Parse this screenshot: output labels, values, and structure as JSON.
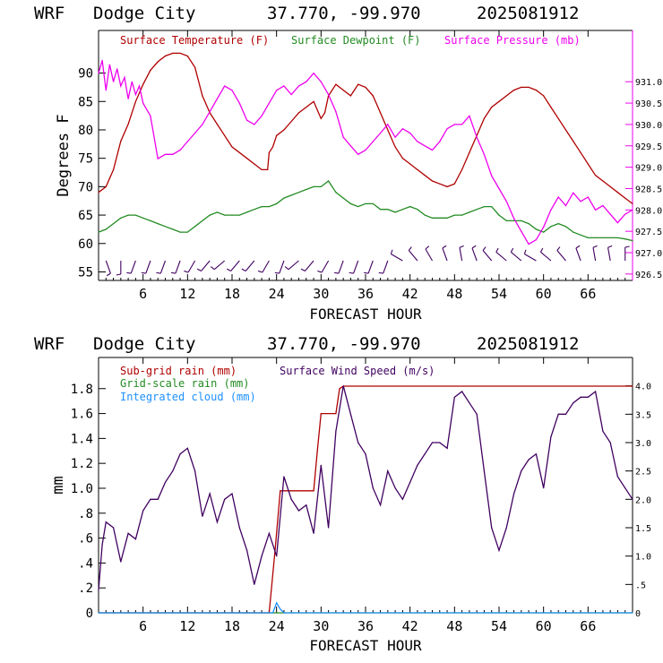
{
  "chart_data": [
    {
      "type": "line",
      "header": {
        "model": "WRF",
        "station": "Dodge City",
        "coords": "37.770, -99.970",
        "run": "2025081912"
      },
      "xlabel": "FORECAST HOUR",
      "ylabel": "Degrees F",
      "xlim": [
        0,
        72
      ],
      "ylim": [
        53.5,
        97.5
      ],
      "y2lim": [
        926.35,
        932.2
      ],
      "grid": false,
      "legend": "top",
      "xticks": [
        6,
        12,
        18,
        24,
        30,
        36,
        42,
        48,
        54,
        60,
        66
      ],
      "xtick_labels": [
        "6",
        "12",
        "18",
        "24",
        "30",
        "36",
        "42",
        "48",
        "54",
        "60",
        "66"
      ],
      "yticks": [
        55,
        60,
        65,
        70,
        75,
        80,
        85,
        90
      ],
      "ytick_labels": [
        "55",
        "60",
        "65",
        "70",
        "75",
        "80",
        "85",
        "90"
      ],
      "y2ticks": [
        926.5,
        927.0,
        927.5,
        928.0,
        928.5,
        929.0,
        929.5,
        930.0,
        930.5,
        931.0
      ],
      "y2tick_labels": [
        "926.5",
        "927.0",
        "927.5",
        "928.0",
        "928.5",
        "929.0",
        "929.5",
        "930.0",
        "930.5",
        "931.0"
      ],
      "series": [
        {
          "name": "Surface Temperature (F)",
          "axis": "left",
          "color": "#b00000",
          "x": [
            0,
            1,
            2,
            3,
            4,
            5,
            6,
            7,
            8,
            9,
            10,
            11,
            12,
            13,
            14,
            15,
            16,
            17,
            18,
            19,
            20,
            21,
            22,
            22.8,
            23,
            23.5,
            24,
            25,
            26,
            27,
            28,
            29,
            30,
            30.5,
            31,
            32,
            33,
            34,
            35,
            36,
            37,
            38,
            39,
            40,
            41,
            42,
            43,
            44,
            45,
            46,
            47,
            48,
            49,
            50,
            51,
            52,
            53,
            54,
            55,
            56,
            57,
            58,
            59,
            60,
            61,
            62,
            63,
            64,
            65,
            66,
            67,
            68,
            69,
            70,
            71,
            72
          ],
          "values": [
            69,
            70,
            73,
            78,
            81,
            85,
            88,
            90.5,
            92,
            93,
            93.5,
            93.5,
            93,
            91,
            86,
            83,
            81,
            79,
            77,
            76,
            75,
            74,
            73,
            73,
            76,
            77,
            79,
            80,
            81.5,
            83,
            84,
            85,
            82,
            83,
            86,
            88,
            87,
            86,
            88,
            87.5,
            86,
            83,
            80,
            77,
            75,
            74,
            73,
            72,
            71,
            70.5,
            70,
            70.5,
            73,
            76,
            79,
            82,
            84,
            85,
            86,
            87,
            87.5,
            87.5,
            87,
            86,
            84,
            82,
            80,
            78,
            76,
            74,
            72,
            71,
            70,
            69,
            68,
            67
          ]
        },
        {
          "name": "Surface Dewpoint (F)",
          "axis": "left",
          "color": "#228b22",
          "x": [
            0,
            1,
            2,
            3,
            4,
            5,
            6,
            7,
            8,
            9,
            10,
            11,
            12,
            13,
            14,
            15,
            16,
            17,
            18,
            19,
            20,
            21,
            22,
            23,
            24,
            25,
            26,
            27,
            28,
            29,
            30,
            31,
            32,
            33,
            34,
            35,
            36,
            37,
            38,
            39,
            40,
            41,
            42,
            43,
            44,
            45,
            46,
            47,
            48,
            49,
            50,
            51,
            52,
            53,
            54,
            55,
            56,
            57,
            58,
            59,
            60,
            61,
            62,
            63,
            64,
            65,
            66,
            67,
            68,
            69,
            70,
            71,
            72
          ],
          "values": [
            62,
            62.5,
            63.5,
            64.5,
            65,
            65,
            64.5,
            64,
            63.5,
            63,
            62.5,
            62,
            62,
            63,
            64,
            65,
            65.5,
            65,
            65,
            65,
            65.5,
            66,
            66.5,
            66.5,
            67,
            68,
            68.5,
            69,
            69.5,
            70,
            70,
            71,
            69,
            68,
            67,
            66.5,
            67,
            67,
            66,
            66,
            65.5,
            66,
            66.5,
            66,
            65,
            64.5,
            64.5,
            64.5,
            65,
            65,
            65.5,
            66,
            66.5,
            66.5,
            65,
            64,
            64,
            64,
            63.5,
            62.5,
            62,
            63,
            63.5,
            63,
            62,
            61.5,
            61,
            61,
            61,
            61,
            61,
            60.8,
            60.5
          ]
        },
        {
          "name": "Surface Pressure (mb)",
          "axis": "right",
          "color": "#ee00ee",
          "x": [
            0,
            0.5,
            1,
            1.5,
            2,
            2.5,
            3,
            3.5,
            4,
            4.5,
            5,
            5.5,
            6,
            7,
            8,
            9,
            10,
            11,
            12,
            13,
            14,
            15,
            16,
            17,
            18,
            19,
            20,
            21,
            22,
            23,
            24,
            25,
            26,
            27,
            28,
            29,
            30,
            31,
            32,
            33,
            34,
            35,
            36,
            37,
            38,
            39,
            40,
            41,
            42,
            43,
            44,
            45,
            46,
            47,
            48,
            49,
            50,
            51,
            52,
            53,
            54,
            55,
            56,
            57,
            58,
            59,
            60,
            61,
            62,
            63,
            64,
            65,
            66,
            67,
            68,
            69,
            70,
            71,
            72
          ],
          "values": [
            931.2,
            931.5,
            930.8,
            931.4,
            931.0,
            931.3,
            930.9,
            931.1,
            930.6,
            931.0,
            930.7,
            930.9,
            930.5,
            930.2,
            929.2,
            929.3,
            929.3,
            929.4,
            929.6,
            929.8,
            930.0,
            930.3,
            930.6,
            930.9,
            930.8,
            930.5,
            930.1,
            930.0,
            930.2,
            930.5,
            930.8,
            930.9,
            930.7,
            930.9,
            931.0,
            931.2,
            931.0,
            930.7,
            930.3,
            929.7,
            929.5,
            929.3,
            929.4,
            929.6,
            929.8,
            930.0,
            929.7,
            929.9,
            929.8,
            929.6,
            929.5,
            929.4,
            929.6,
            929.9,
            930.0,
            930.0,
            930.2,
            929.7,
            929.3,
            928.8,
            928.5,
            928.2,
            927.8,
            927.5,
            927.2,
            927.3,
            927.6,
            928.0,
            928.3,
            928.1,
            928.4,
            928.2,
            928.3,
            928.0,
            928.1,
            927.9,
            927.7,
            927.9,
            928.0
          ]
        }
      ],
      "wind_barbs": {
        "color": "#400060",
        "hours": [
          1,
          3,
          5,
          7,
          9,
          11,
          13,
          15,
          17,
          19,
          21,
          23,
          25,
          27,
          29,
          31,
          33,
          35,
          37,
          39,
          41,
          43,
          45,
          47,
          49,
          51,
          53,
          55,
          57,
          59,
          61,
          63,
          65,
          67,
          69,
          71
        ],
        "direction_deg": [
          160,
          180,
          200,
          200,
          200,
          200,
          210,
          220,
          230,
          220,
          220,
          210,
          200,
          230,
          220,
          210,
          200,
          200,
          200,
          200,
          300,
          320,
          330,
          340,
          350,
          340,
          320,
          310,
          310,
          300,
          310,
          320,
          340,
          350,
          350,
          360
        ]
      }
    },
    {
      "type": "line",
      "header": {
        "model": "WRF",
        "station": "Dodge City",
        "coords": "37.770, -99.970",
        "run": "2025081912"
      },
      "xlabel": "FORECAST HOUR",
      "ylabel": "mm",
      "xlim": [
        0,
        72
      ],
      "ylim": [
        0,
        2.05
      ],
      "y2lim": [
        0,
        4.5
      ],
      "grid": false,
      "legend": "top-left",
      "xticks": [
        6,
        12,
        18,
        24,
        30,
        36,
        42,
        48,
        54,
        60,
        66
      ],
      "xtick_labels": [
        "6",
        "12",
        "18",
        "24",
        "30",
        "36",
        "42",
        "48",
        "54",
        "60",
        "66"
      ],
      "yticks": [
        0,
        0.2,
        0.4,
        0.6,
        0.8,
        1.0,
        1.2,
        1.4,
        1.6,
        1.8
      ],
      "ytick_labels": [
        "0",
        ".2",
        ".4",
        ".6",
        ".8",
        "1.0",
        "1.2",
        "1.4",
        "1.6",
        "1.8"
      ],
      "y2ticks": [
        0,
        0.5,
        1.0,
        1.5,
        2.0,
        2.5,
        3.0,
        3.5,
        4.0
      ],
      "y2tick_labels": [
        "0",
        ".5",
        "1.0",
        "1.5",
        "2.0",
        "2.5",
        "3.0",
        "3.5",
        "4.0"
      ],
      "series": [
        {
          "name": "Sub-grid rain (mm)",
          "axis": "left",
          "color": "#b00000",
          "x": [
            0,
            23,
            23.8,
            24.5,
            29,
            29.5,
            30,
            30.5,
            32,
            32.5,
            33,
            72
          ],
          "values": [
            0,
            0,
            0.5,
            0.98,
            0.98,
            1.3,
            1.6,
            1.6,
            1.6,
            1.8,
            1.82,
            1.82
          ]
        },
        {
          "name": "Grid-scale rain (mm)",
          "axis": "left",
          "color": "#228b22",
          "x": [
            0,
            72
          ],
          "values": [
            0,
            0
          ]
        },
        {
          "name": "Integrated cloud (mm)",
          "axis": "left",
          "color": "#1e90ff",
          "x": [
            0,
            23.5,
            24,
            24.5,
            25,
            72
          ],
          "values": [
            0,
            0,
            0.08,
            0.03,
            0,
            0
          ]
        },
        {
          "name": "Surface Wind Speed (m/s)",
          "axis": "right",
          "color": "#400060",
          "x": [
            0,
            0.5,
            1,
            2,
            3,
            4,
            5,
            6,
            7,
            8,
            9,
            10,
            11,
            12,
            13,
            14,
            15,
            16,
            17,
            18,
            19,
            20,
            21,
            22,
            23,
            24,
            25,
            26,
            27,
            28,
            29,
            30,
            31,
            32,
            33,
            34,
            35,
            36,
            37,
            38,
            39,
            40,
            41,
            42,
            43,
            44,
            45,
            46,
            47,
            48,
            49,
            50,
            51,
            52,
            53,
            54,
            55,
            56,
            57,
            58,
            59,
            60,
            61,
            62,
            63,
            64,
            65,
            66,
            67,
            68,
            69,
            70,
            71,
            72
          ],
          "values": [
            0.4,
            1.2,
            1.6,
            1.5,
            0.9,
            1.4,
            1.3,
            1.8,
            2.0,
            2.0,
            2.3,
            2.5,
            2.8,
            2.9,
            2.5,
            1.7,
            2.1,
            1.6,
            2.0,
            2.1,
            1.5,
            1.1,
            0.5,
            1.0,
            1.4,
            1.0,
            2.4,
            2.0,
            1.8,
            1.9,
            1.4,
            2.6,
            1.5,
            3.2,
            4.0,
            3.5,
            3.0,
            2.8,
            2.2,
            1.9,
            2.5,
            2.2,
            2.0,
            2.3,
            2.6,
            2.8,
            3.0,
            3.0,
            2.9,
            3.8,
            3.9,
            3.7,
            3.5,
            2.5,
            1.5,
            1.1,
            1.5,
            2.1,
            2.5,
            2.7,
            2.8,
            2.2,
            3.1,
            3.5,
            3.5,
            3.7,
            3.8,
            3.8,
            3.9,
            3.2,
            3.0,
            2.4,
            2.2,
            2.0
          ]
        }
      ]
    }
  ]
}
